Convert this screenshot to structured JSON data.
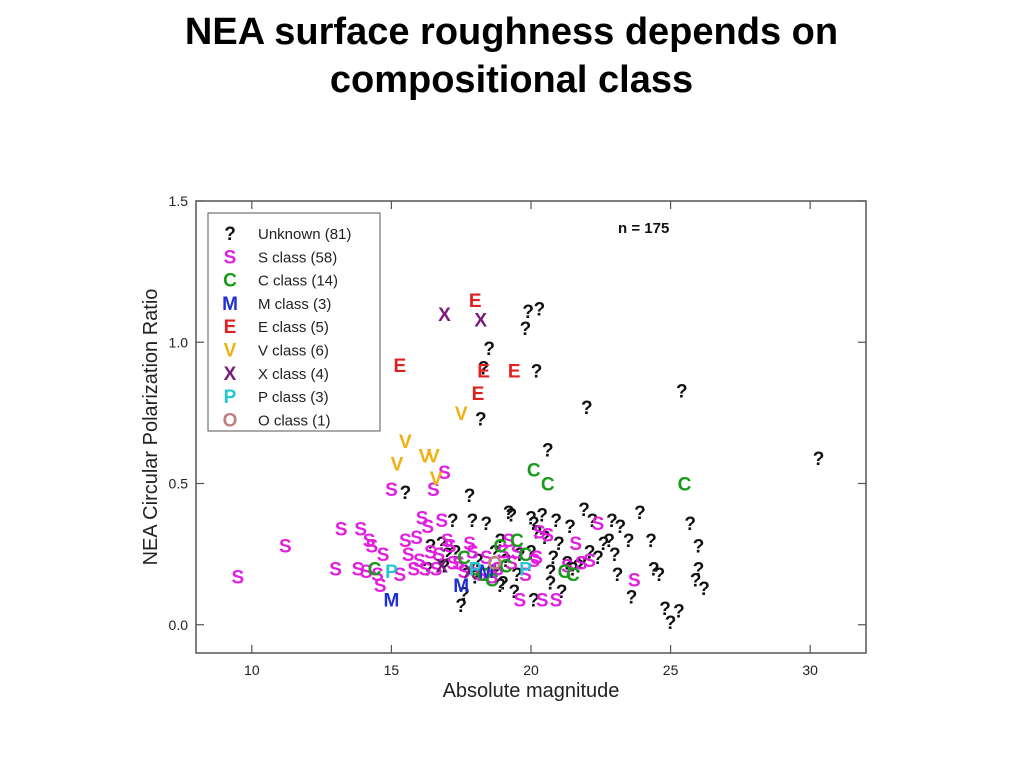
{
  "slide": {
    "title_line1": "NEA surface roughness depends on",
    "title_line2": "compositional class"
  },
  "chart_data": {
    "type": "scatter",
    "xlabel": "Absolute magnitude",
    "ylabel": "NEA Circular Polarization Ratio",
    "xlim": [
      8,
      32
    ],
    "ylim": [
      -0.1,
      1.5
    ],
    "xticks": [
      10,
      15,
      20,
      25,
      30
    ],
    "yticks": [
      0.0,
      0.5,
      1.0,
      1.5
    ],
    "ytick_labels": [
      "0.0",
      "0.5",
      "1.0",
      "1.5"
    ],
    "annotation": "n = 175",
    "grid": false,
    "legend_position": "top-left",
    "series": [
      {
        "name": "Unknown (81)",
        "symbol": "?",
        "color": "#111111",
        "x": [
          15.5,
          16.4,
          16.9,
          17.2,
          17.7,
          17.8,
          17.9,
          18.1,
          18.4,
          18.7,
          18.6,
          18.8,
          18.9,
          19.0,
          19.1,
          19.2,
          19.3,
          19.6,
          20.0,
          20.0,
          20.1,
          20.2,
          20.3,
          20.4,
          20.5,
          20.6,
          20.7,
          20.9,
          21.1,
          21.3,
          21.4,
          21.8,
          21.9,
          22.0,
          22.2,
          22.6,
          22.9,
          23.2,
          23.5,
          23.9,
          24.4,
          24.6,
          24.8,
          25.0,
          25.4,
          25.7,
          25.9,
          26.0,
          18.3,
          19.8,
          19.9,
          20.7,
          21.5,
          22.1,
          22.8,
          18.2,
          18.5,
          19.4,
          17.3,
          17.6,
          16.8,
          16.3,
          17.0,
          18.0,
          20.8,
          21.0,
          22.4,
          23.1,
          23.0,
          24.3,
          17.5,
          18.9,
          20.2,
          21.7,
          19.5,
          20.1,
          23.6,
          26.2,
          26.0,
          25.3,
          30.3
        ],
        "y": [
          0.47,
          0.28,
          0.21,
          0.37,
          0.18,
          0.46,
          0.37,
          0.23,
          0.36,
          0.26,
          0.19,
          0.2,
          0.3,
          0.15,
          0.23,
          0.4,
          0.39,
          0.25,
          0.38,
          0.26,
          0.36,
          0.9,
          1.12,
          0.39,
          0.31,
          0.62,
          0.15,
          0.37,
          0.12,
          0.22,
          0.35,
          0.22,
          0.41,
          0.77,
          0.37,
          0.29,
          0.37,
          0.35,
          0.3,
          0.4,
          0.2,
          0.18,
          0.06,
          0.01,
          0.83,
          0.36,
          0.16,
          0.2,
          0.91,
          1.05,
          1.11,
          0.19,
          0.2,
          0.26,
          0.3,
          0.73,
          0.98,
          0.12,
          0.26,
          0.11,
          0.29,
          0.2,
          0.25,
          0.17,
          0.24,
          0.29,
          0.24,
          0.18,
          0.25,
          0.3,
          0.07,
          0.14,
          0.33,
          0.21,
          0.18,
          0.09,
          0.1,
          0.13,
          0.28,
          0.05,
          0.59
        ]
      },
      {
        "name": "S class (58)",
        "symbol": "S",
        "color": "#e21fe0",
        "x": [
          9.5,
          11.2,
          13.0,
          13.2,
          13.8,
          13.9,
          14.1,
          14.2,
          14.3,
          14.5,
          14.6,
          14.7,
          15.0,
          15.3,
          15.5,
          15.6,
          15.8,
          15.9,
          16.0,
          16.1,
          16.2,
          16.3,
          16.4,
          16.5,
          16.6,
          16.7,
          16.8,
          16.9,
          17.0,
          17.1,
          17.2,
          17.4,
          17.6,
          17.8,
          17.9,
          18.0,
          18.2,
          18.4,
          18.6,
          18.8,
          19.0,
          19.2,
          19.3,
          19.5,
          19.6,
          20.1,
          20.3,
          20.4,
          20.6,
          20.9,
          21.3,
          21.6,
          21.8,
          22.1,
          22.4,
          23.7,
          19.8,
          20.2
        ],
        "y": [
          0.17,
          0.28,
          0.2,
          0.34,
          0.2,
          0.34,
          0.19,
          0.3,
          0.28,
          0.18,
          0.14,
          0.25,
          0.48,
          0.18,
          0.3,
          0.25,
          0.2,
          0.31,
          0.23,
          0.38,
          0.2,
          0.35,
          0.26,
          0.48,
          0.2,
          0.25,
          0.37,
          0.54,
          0.3,
          0.28,
          0.22,
          0.22,
          0.19,
          0.29,
          0.26,
          0.2,
          0.18,
          0.24,
          0.17,
          0.2,
          0.26,
          0.3,
          0.22,
          0.26,
          0.09,
          0.23,
          0.33,
          0.09,
          0.32,
          0.09,
          0.21,
          0.29,
          0.22,
          0.23,
          0.36,
          0.16,
          0.18,
          0.24
        ]
      },
      {
        "name": "C class (14)",
        "symbol": "C",
        "color": "#1a9a1a",
        "x": [
          14.4,
          17.6,
          18.0,
          18.3,
          18.6,
          19.1,
          19.5,
          19.8,
          20.1,
          20.6,
          21.2,
          21.5,
          25.5,
          18.9
        ],
        "y": [
          0.2,
          0.24,
          0.2,
          0.18,
          0.16,
          0.21,
          0.3,
          0.25,
          0.55,
          0.5,
          0.19,
          0.18,
          0.5,
          0.28
        ]
      },
      {
        "name": "M class (3)",
        "symbol": "M",
        "color": "#1f2fd0",
        "x": [
          15.0,
          17.5,
          18.4
        ],
        "y": [
          0.09,
          0.14,
          0.19
        ]
      },
      {
        "name": "E class (5)",
        "symbol": "E",
        "color": "#e02020",
        "x": [
          15.3,
          18.0,
          18.3,
          19.4,
          18.1
        ],
        "y": [
          0.92,
          1.15,
          0.9,
          0.9,
          0.82
        ]
      },
      {
        "name": "V class (6)",
        "symbol": "V",
        "color": "#f0b010",
        "x": [
          15.2,
          15.5,
          16.2,
          16.5,
          16.6,
          17.5
        ],
        "y": [
          0.57,
          0.65,
          0.6,
          0.6,
          0.52,
          0.75
        ]
      },
      {
        "name": "X class (4)",
        "symbol": "X",
        "color": "#7a1a7a",
        "x": [
          16.9,
          18.2,
          16.8,
          17.8
        ],
        "y": [
          1.1,
          1.08,
          0.21,
          0.19
        ]
      },
      {
        "name": "P class (3)",
        "symbol": "P",
        "color": "#20c8d0",
        "x": [
          15.0,
          18.0,
          19.8
        ],
        "y": [
          0.19,
          0.2,
          0.2
        ]
      },
      {
        "name": "O class (1)",
        "symbol": "O",
        "color": "#c08080",
        "x": [
          18.7
        ],
        "y": [
          0.22
        ]
      }
    ]
  }
}
